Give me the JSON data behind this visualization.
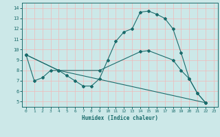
{
  "xlabel": "Humidex (Indice chaleur)",
  "xlim": [
    -0.5,
    23.5
  ],
  "ylim": [
    4.5,
    14.5
  ],
  "yticks": [
    5,
    6,
    7,
    8,
    9,
    10,
    11,
    12,
    13,
    14
  ],
  "xticks": [
    0,
    1,
    2,
    3,
    4,
    5,
    6,
    7,
    8,
    9,
    10,
    11,
    12,
    13,
    14,
    15,
    16,
    17,
    18,
    19,
    20,
    21,
    22,
    23
  ],
  "bg_color": "#cce8e8",
  "line_color": "#1a6b6b",
  "grid_color_h": "#f0b8b8",
  "grid_color_v": "#e8d8d8",
  "line1_x": [
    0,
    1,
    2,
    3,
    4,
    5,
    6,
    7,
    8,
    9,
    10,
    11,
    12,
    13,
    14,
    15,
    16,
    17,
    18,
    19,
    20,
    21,
    22
  ],
  "line1_y": [
    9.5,
    7.0,
    7.3,
    8.0,
    8.0,
    7.5,
    7.0,
    6.5,
    6.5,
    7.2,
    9.0,
    10.8,
    11.7,
    12.0,
    13.6,
    13.7,
    13.4,
    13.0,
    12.0,
    9.7,
    7.2,
    5.8,
    4.9
  ],
  "line2_x": [
    0,
    4,
    9,
    14,
    15,
    18,
    19,
    20,
    21,
    22
  ],
  "line2_y": [
    9.5,
    8.0,
    8.0,
    9.8,
    9.9,
    9.0,
    8.0,
    7.2,
    5.8,
    4.9
  ],
  "line3_x": [
    0,
    4,
    22
  ],
  "line3_y": [
    9.5,
    8.0,
    4.9
  ]
}
